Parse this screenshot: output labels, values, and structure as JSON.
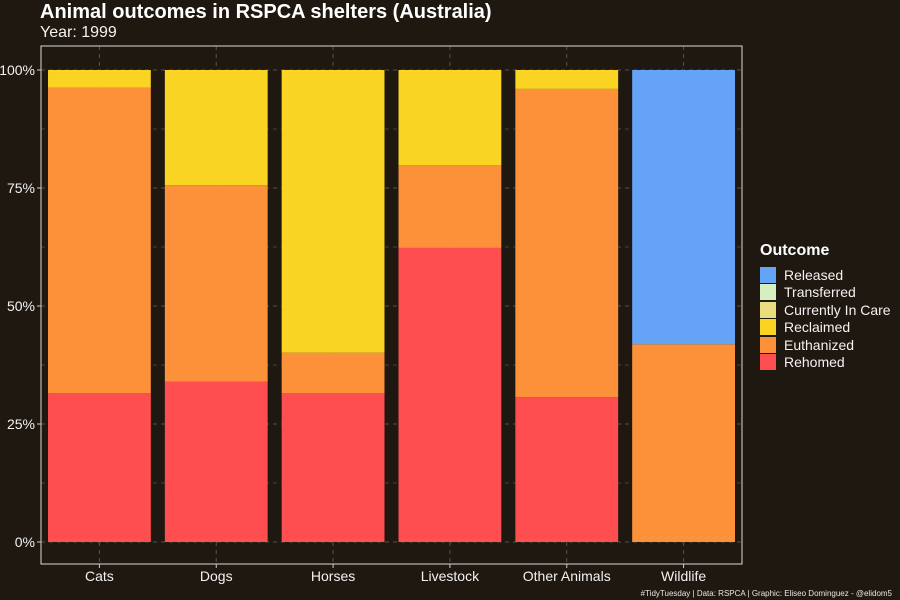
{
  "title": "Animal outcomes in RSPCA shelters (Australia)",
  "subtitle": "Year: 1999",
  "caption": "#TidyTuesday | Data: RSPCA | Graphic: Eliseo Dominguez - @elidom5",
  "legend": {
    "title": "Outcome",
    "items": [
      {
        "label": "Released",
        "color": "#64a3f5"
      },
      {
        "label": "Transferred",
        "color": "#d5efc0"
      },
      {
        "label": "Currently In Care",
        "color": "#eadb7c"
      },
      {
        "label": "Reclaimed",
        "color": "#f9d423"
      },
      {
        "label": "Euthanized",
        "color": "#fc913a"
      },
      {
        "label": "Rehomed",
        "color": "#ff4e50"
      }
    ]
  },
  "chart_data": {
    "type": "bar",
    "stacked": true,
    "normalized": true,
    "categories": [
      "Cats",
      "Dogs",
      "Horses",
      "Livestock",
      "Other Animals",
      "Wildlife"
    ],
    "y_tick_labels": [
      "0%",
      "25%",
      "50%",
      "75%",
      "100%"
    ],
    "ylim": [
      0,
      1
    ],
    "grid": true,
    "legend_position": "right",
    "series": [
      {
        "name": "Rehomed",
        "color": "#ff4e50",
        "values": [
          0.315,
          0.34,
          0.315,
          0.623,
          0.307,
          0.0
        ]
      },
      {
        "name": "Euthanized",
        "color": "#fc913a",
        "values": [
          0.648,
          0.416,
          0.086,
          0.175,
          0.653,
          0.419
        ]
      },
      {
        "name": "Reclaimed",
        "color": "#f9d423",
        "values": [
          0.037,
          0.244,
          0.599,
          0.202,
          0.04,
          0.0
        ]
      },
      {
        "name": "Currently In Care",
        "color": "#eadb7c",
        "values": [
          0,
          0,
          0,
          0,
          0,
          0
        ]
      },
      {
        "name": "Transferred",
        "color": "#d5efc0",
        "values": [
          0,
          0,
          0,
          0,
          0,
          0
        ]
      },
      {
        "name": "Released",
        "color": "#64a3f5",
        "values": [
          0.0,
          0.0,
          0.0,
          0.0,
          0.0,
          0.581
        ]
      }
    ]
  }
}
